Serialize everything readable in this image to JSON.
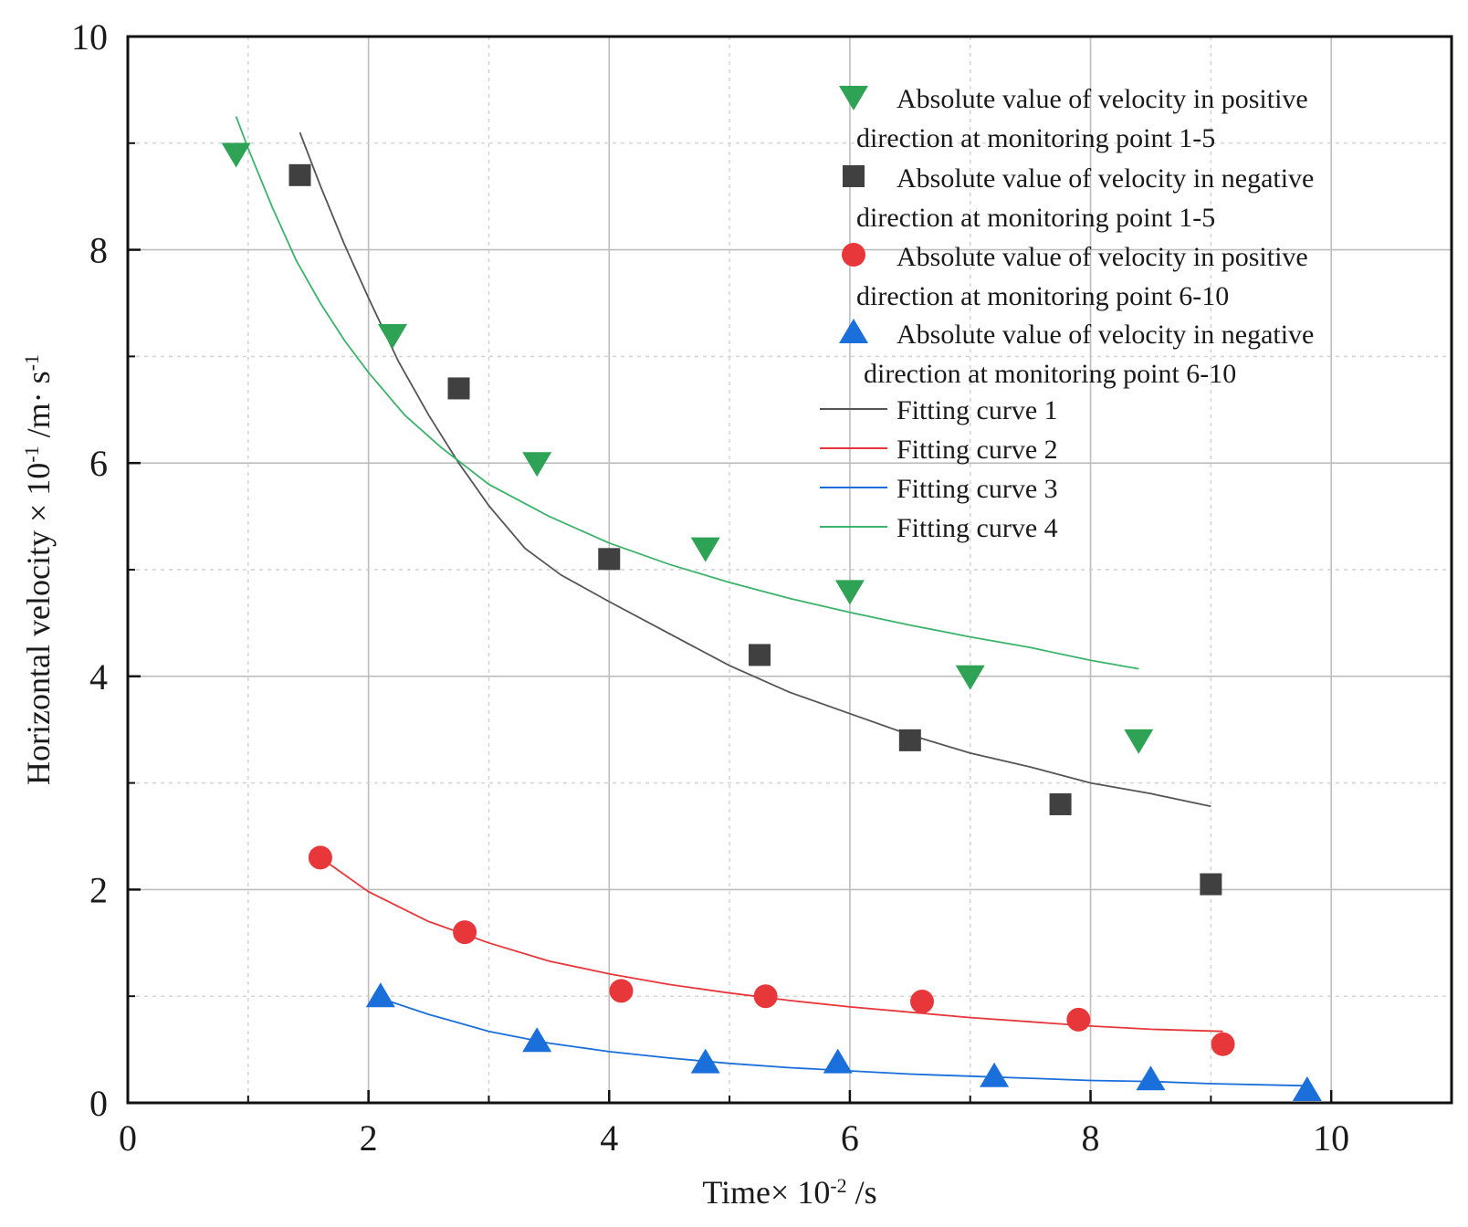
{
  "chart_data": {
    "type": "scatter",
    "xlabel": "Time× 10",
    "xlabel_exp": "-2",
    "xlabel_unit": " /s",
    "ylabel": "Horizontal velocity × 10",
    "ylabel_exp": "-1",
    "ylabel_unit": " /m· s",
    "ylabel_unit_exp": "-1",
    "xlim": [
      0,
      11
    ],
    "ylim": [
      0,
      10
    ],
    "x_major_ticks": [
      0,
      2,
      4,
      6,
      8,
      10
    ],
    "x_minor_ticks": [
      1,
      3,
      5,
      7,
      9
    ],
    "y_major_ticks": [
      0,
      2,
      4,
      6,
      8,
      10
    ],
    "y_minor_ticks": [
      1,
      3,
      5,
      7,
      9
    ],
    "x_tick_labels": [
      "0",
      "2",
      "4",
      "6",
      "8",
      "10"
    ],
    "y_tick_labels": [
      "0",
      "2",
      "4",
      "6",
      "8",
      "10"
    ],
    "grid": true,
    "legend_position": "top-right",
    "series": [
      {
        "name": "Absolute value of velocity in positive direction at monitoring point 1-5",
        "legend_lines": [
          "Absolute value of velocity in positive",
          "direction at monitoring point 1-5"
        ],
        "marker": "triangle-down",
        "color": "#2ea356",
        "x": [
          0.9,
          2.2,
          3.4,
          4.8,
          6.0,
          7.0,
          8.4
        ],
        "y": [
          8.9,
          7.2,
          6.0,
          5.2,
          4.8,
          4.0,
          3.4
        ]
      },
      {
        "name": "Absolute value of velocity in negative direction at monitoring point 1-5",
        "legend_lines": [
          "Absolute value of velocity in negative",
          "direction at monitoring point 1-5"
        ],
        "marker": "square",
        "color": "#404040",
        "x": [
          1.43,
          2.75,
          4.0,
          5.25,
          6.5,
          7.75,
          9.0
        ],
        "y": [
          8.7,
          6.7,
          5.1,
          4.2,
          3.4,
          2.8,
          2.05
        ]
      },
      {
        "name": "Absolute value of velocity in positive direction at monitoring point 6-10",
        "legend_lines": [
          "Absolute value of velocity in positive",
          "direction at monitoring point 6-10"
        ],
        "marker": "circle",
        "color": "#e8373a",
        "x": [
          1.6,
          2.8,
          4.1,
          5.3,
          6.6,
          7.9,
          9.1
        ],
        "y": [
          2.3,
          1.6,
          1.05,
          1.0,
          0.95,
          0.78,
          0.55
        ]
      },
      {
        "name": "Absolute value of velocity in negative direction at monitoring point 6-10",
        "legend_lines": [
          "Absolute value of velocity in negative",
          "direction at monitoring point 6-10"
        ],
        "marker": "triangle-up",
        "color": "#1a6fdb",
        "x": [
          2.1,
          3.4,
          4.8,
          5.9,
          7.2,
          8.5,
          9.8
        ],
        "y": [
          1.0,
          0.58,
          0.38,
          0.38,
          0.25,
          0.22,
          0.12
        ]
      }
    ],
    "fits": [
      {
        "name": "Fitting curve 1",
        "color": "#555555",
        "x": [
          1.43,
          1.6,
          1.8,
          2.0,
          2.25,
          2.5,
          2.75,
          3.0,
          3.3,
          3.6,
          4.0,
          4.5,
          5.0,
          5.5,
          6.0,
          6.5,
          7.0,
          7.5,
          8.0,
          8.5,
          9.0
        ],
        "y": [
          9.1,
          8.6,
          8.05,
          7.55,
          6.95,
          6.45,
          6.0,
          5.6,
          5.2,
          4.95,
          4.7,
          4.4,
          4.1,
          3.85,
          3.65,
          3.45,
          3.28,
          3.15,
          3.0,
          2.9,
          2.78
        ]
      },
      {
        "name": "Fitting curve 2",
        "color": "#e8373a",
        "x": [
          1.6,
          2.0,
          2.5,
          3.0,
          3.5,
          4.0,
          4.5,
          5.0,
          5.5,
          6.0,
          6.5,
          7.0,
          7.5,
          8.0,
          8.5,
          9.1
        ],
        "y": [
          2.3,
          1.98,
          1.7,
          1.5,
          1.33,
          1.21,
          1.11,
          1.03,
          0.96,
          0.9,
          0.85,
          0.8,
          0.76,
          0.72,
          0.69,
          0.67
        ]
      },
      {
        "name": "Fitting curve 3",
        "color": "#1a6fdb",
        "x": [
          2.1,
          2.5,
          3.0,
          3.5,
          4.0,
          4.5,
          5.0,
          5.5,
          6.0,
          6.5,
          7.0,
          7.5,
          8.0,
          8.5,
          9.0,
          9.8
        ],
        "y": [
          0.98,
          0.83,
          0.67,
          0.56,
          0.48,
          0.42,
          0.37,
          0.33,
          0.3,
          0.27,
          0.25,
          0.23,
          0.21,
          0.2,
          0.18,
          0.16
        ]
      },
      {
        "name": "Fitting curve 4",
        "color": "#3cb36a",
        "x": [
          0.9,
          1.0,
          1.2,
          1.4,
          1.6,
          1.8,
          2.0,
          2.3,
          2.6,
          3.0,
          3.5,
          4.0,
          4.5,
          5.0,
          5.5,
          6.0,
          6.5,
          7.0,
          7.5,
          8.0,
          8.4
        ],
        "y": [
          9.25,
          8.95,
          8.4,
          7.9,
          7.5,
          7.15,
          6.85,
          6.45,
          6.15,
          5.8,
          5.5,
          5.25,
          5.05,
          4.88,
          4.73,
          4.6,
          4.48,
          4.37,
          4.27,
          4.15,
          4.07
        ]
      }
    ]
  }
}
